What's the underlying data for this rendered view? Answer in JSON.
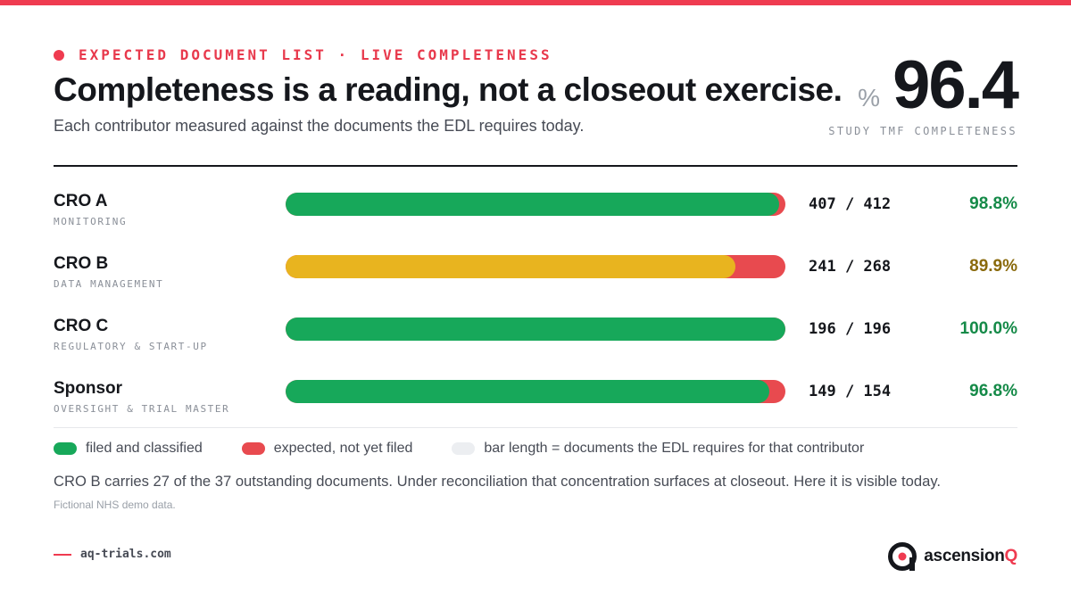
{
  "header": {
    "eyebrow": "EXPECTED DOCUMENT LIST · LIVE COMPLETENESS",
    "title": "Completeness is a reading, not a closeout exercise.",
    "subtitle": "Each contributor measured against the documents the EDL requires today."
  },
  "kpi": {
    "unit": "%",
    "value": "96.4",
    "label": "STUDY TMF COMPLETENESS"
  },
  "chart_data": {
    "type": "bar",
    "orientation": "horizontal",
    "stacked": true,
    "categories": [
      "CRO A",
      "CRO B",
      "CRO C",
      "Sponsor"
    ],
    "subtitles": [
      "MONITORING",
      "DATA MANAGEMENT",
      "REGULATORY & START-UP",
      "OVERSIGHT & TRIAL MASTER"
    ],
    "filed": [
      407,
      241,
      196,
      149
    ],
    "required": [
      412,
      268,
      196,
      154
    ],
    "count_labels": [
      "407 / 412",
      "241 / 268",
      "196 / 196",
      "149 / 154"
    ],
    "percent_labels": [
      "98.8%",
      "89.9%",
      "100.0%",
      "96.8%"
    ],
    "status": [
      "good",
      "warn",
      "good",
      "good"
    ],
    "series": [
      {
        "name": "filed and classified",
        "values": [
          407,
          241,
          196,
          149
        ]
      },
      {
        "name": "expected, not yet filed",
        "values": [
          5,
          27,
          0,
          5
        ]
      }
    ],
    "legend": [
      {
        "label": "filed and classified",
        "color": "#17a85a"
      },
      {
        "label": "expected, not yet filed",
        "color": "#e84a4f"
      },
      {
        "label": "bar length = documents the EDL requires for that contributor",
        "color": "#eceef1"
      }
    ]
  },
  "colors": {
    "accent": "#ef3b50",
    "good": "#17a85a",
    "warn": "#e8b41f",
    "missing": "#e84a4f",
    "good_text": "#158a48",
    "warn_text": "#8a6a0c"
  },
  "note": "CRO B carries 27 of the 37 outstanding documents. Under reconciliation that concentration surfaces at closeout. Here it is visible today.",
  "source": "Fictional NHS demo data.",
  "footer": {
    "url": "aq-trials.com",
    "brand_main": "ascension",
    "brand_accent": "Q",
    "logo_icon": "ascensionq-logo-icon"
  }
}
